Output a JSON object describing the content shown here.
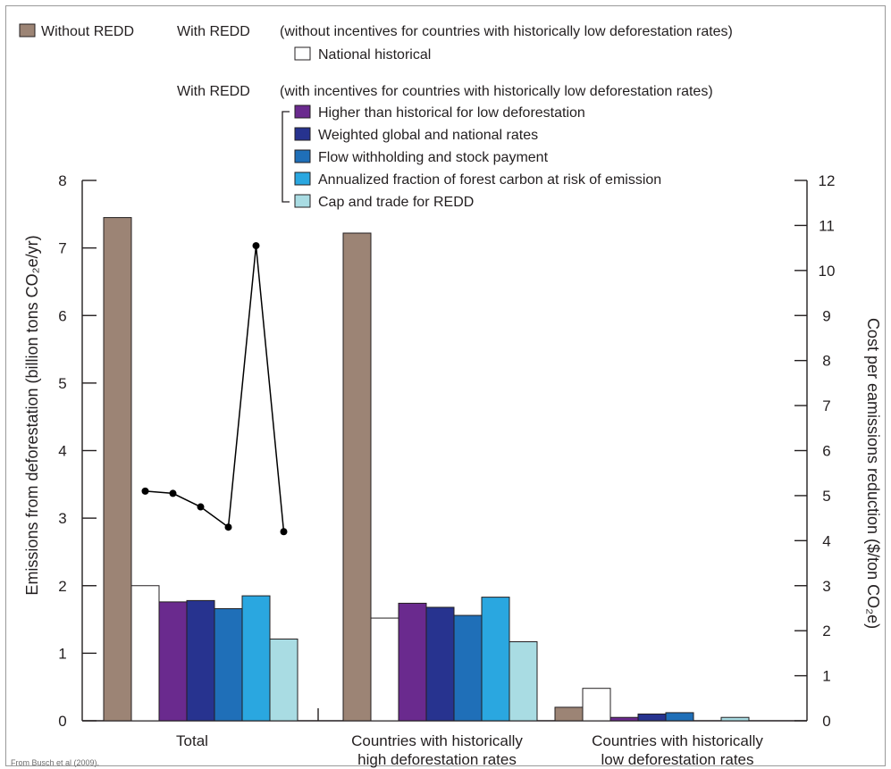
{
  "legend": {
    "without_redd": "Without REDD",
    "with_redd_1": "With REDD",
    "with_redd_1_note": "(without incentives for countries with historically low deforestation rates)",
    "national_historical": "National historical",
    "with_redd_2": "With REDD",
    "with_redd_2_note": "(with incentives for countries with historically low deforestation rates)"
  },
  "source": "From Busch et al (2009).",
  "colors": {
    "without_redd": "#9c8475",
    "national_historical": "#ffffff",
    "higher_than_historical": "#6a2a8e",
    "weighted_global": "#27338f",
    "flow_withholding": "#1f6fb8",
    "annualized_fraction": "#2aa7e0",
    "cap_and_trade": "#a9dce3",
    "cost_line": "#000000"
  },
  "chart_data": {
    "type": "bar",
    "xlabel": "",
    "ylabel": "Emissions from deforestation (billion tons CO₂e/yr)",
    "y2label": "Cost per eamissions reduction ($/ton CO₂e)",
    "ylim": [
      0,
      8
    ],
    "y2lim": [
      0,
      12
    ],
    "yticks": [
      "0",
      "1",
      "2",
      "3",
      "4",
      "5",
      "6",
      "7",
      "8"
    ],
    "y2ticks": [
      "0",
      "1",
      "2",
      "3",
      "4",
      "5",
      "6",
      "7",
      "8",
      "9",
      "10",
      "11",
      "12"
    ],
    "categories": [
      [
        "Total"
      ],
      [
        "Countries with historically",
        "high deforestation rates"
      ],
      [
        "Countries with historically",
        "low deforestation rates"
      ]
    ],
    "series": [
      {
        "name": "Without REDD",
        "color_key": "without_redd",
        "values": [
          7.45,
          7.22,
          0.2
        ]
      },
      {
        "name": "National historical",
        "color_key": "national_historical",
        "values": [
          2.0,
          1.52,
          0.48
        ]
      },
      {
        "name": "Higher than historical for low deforestation",
        "color_key": "higher_than_historical",
        "values": [
          1.76,
          1.74,
          0.05
        ]
      },
      {
        "name": "Weighted global and national rates",
        "color_key": "weighted_global",
        "values": [
          1.78,
          1.68,
          0.1
        ]
      },
      {
        "name": "Flow withholding and stock payment",
        "color_key": "flow_withholding",
        "values": [
          1.66,
          1.56,
          0.12
        ]
      },
      {
        "name": "Annualized fraction of forest carbon at risk of emission",
        "color_key": "annualized_fraction",
        "values": [
          1.85,
          1.83,
          0.0
        ]
      },
      {
        "name": "Cap and trade for REDD",
        "color_key": "cap_and_trade",
        "values": [
          1.21,
          1.17,
          0.05
        ]
      }
    ],
    "cost_line": {
      "axis": "right",
      "category": "Total",
      "series_keys": [
        "national_historical",
        "higher_than_historical",
        "weighted_global",
        "flow_withholding",
        "annualized_fraction",
        "cap_and_trade"
      ],
      "values": [
        5.1,
        5.05,
        4.75,
        4.3,
        10.55,
        4.2
      ]
    },
    "grid": false,
    "legend_position": "top"
  }
}
